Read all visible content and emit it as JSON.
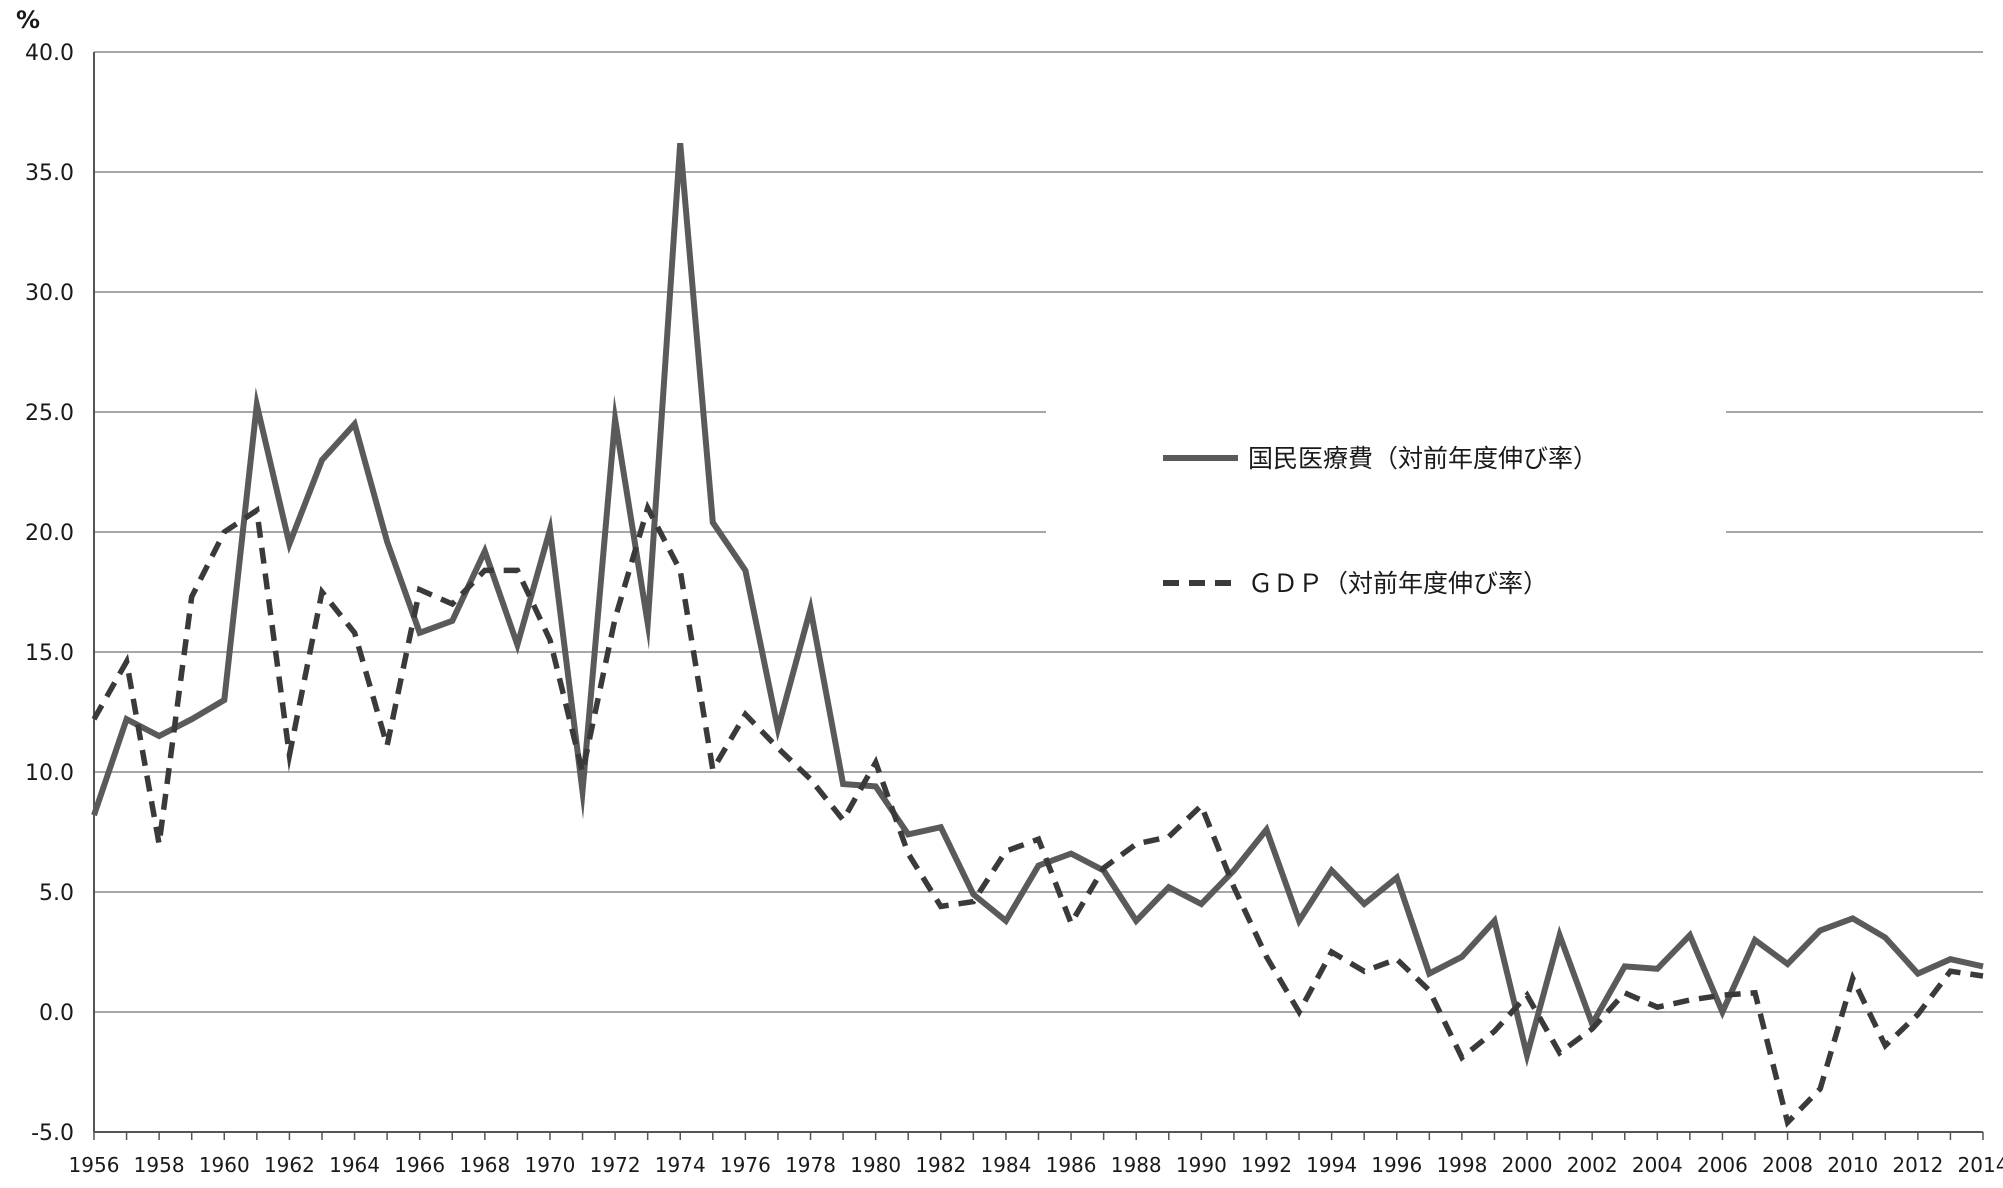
{
  "chart_data": {
    "type": "line",
    "y_unit_label": "%",
    "ylim": [
      -5,
      40
    ],
    "y_ticks": [
      "40.0",
      "35.0",
      "30.0",
      "25.0",
      "20.0",
      "15.0",
      "10.0",
      "5.0",
      "0.0",
      "-5.0"
    ],
    "y_tick_values": [
      40,
      35,
      30,
      25,
      20,
      15,
      10,
      5,
      0,
      -5
    ],
    "x_ticks": [
      1956,
      1958,
      1960,
      1962,
      1964,
      1966,
      1968,
      1970,
      1972,
      1974,
      1976,
      1978,
      1980,
      1982,
      1984,
      1986,
      1988,
      1990,
      1992,
      1994,
      1996,
      1998,
      2000,
      2002,
      2004,
      2006,
      2008,
      2010,
      2012,
      2014
    ],
    "x": [
      1956,
      1957,
      1958,
      1959,
      1960,
      1961,
      1962,
      1963,
      1964,
      1965,
      1966,
      1967,
      1968,
      1969,
      1970,
      1971,
      1972,
      1973,
      1974,
      1975,
      1976,
      1977,
      1978,
      1979,
      1980,
      1981,
      1982,
      1983,
      1984,
      1985,
      1986,
      1987,
      1988,
      1989,
      1990,
      1991,
      1992,
      1993,
      1994,
      1995,
      1996,
      1997,
      1998,
      1999,
      2000,
      2001,
      2002,
      2003,
      2004,
      2005,
      2006,
      2007,
      2008,
      2009,
      2010,
      2011,
      2012,
      2013,
      2014
    ],
    "grid": "horizontal",
    "legend_position": "center-right",
    "series": [
      {
        "name": "国民医療費（対前年度伸び率）",
        "style": "solid",
        "color": "#5a5a5a",
        "values": [
          8.2,
          12.2,
          11.5,
          12.2,
          13.0,
          25.3,
          19.5,
          23.0,
          24.5,
          19.6,
          15.8,
          16.3,
          19.2,
          15.3,
          20.1,
          9.2,
          24.7,
          16.2,
          36.2,
          20.4,
          18.4,
          11.8,
          16.8,
          9.5,
          9.4,
          7.4,
          7.7,
          4.9,
          3.8,
          6.1,
          6.6,
          5.9,
          3.8,
          5.2,
          4.5,
          5.9,
          7.6,
          3.8,
          5.9,
          4.5,
          5.6,
          1.6,
          2.3,
          3.8,
          -1.8,
          3.2,
          -0.5,
          1.9,
          1.8,
          3.2,
          0.0,
          3.0,
          2.0,
          3.4,
          3.9,
          3.1,
          1.6,
          2.2,
          1.9
        ]
      },
      {
        "name": "ＧＤＰ（対前年度伸び率）",
        "style": "dashed",
        "color": "#3a3a3a",
        "values": [
          12.2,
          14.6,
          7.0,
          17.3,
          20.0,
          20.9,
          10.7,
          17.5,
          15.8,
          11.1,
          17.6,
          17.0,
          18.4,
          18.4,
          15.5,
          10.0,
          16.4,
          21.0,
          18.4,
          10.1,
          12.4,
          11.0,
          9.7,
          8.0,
          10.4,
          6.6,
          4.4,
          4.6,
          6.7,
          7.2,
          3.7,
          6.0,
          7.0,
          7.3,
          8.6,
          5.2,
          2.3,
          0.0,
          2.5,
          1.7,
          2.2,
          0.9,
          -1.9,
          -0.8,
          0.7,
          -1.7,
          -0.7,
          0.8,
          0.2,
          0.5,
          0.7,
          0.8,
          -4.6,
          -3.2,
          1.4,
          -1.4,
          -0.1,
          1.7,
          1.5
        ]
      }
    ]
  }
}
